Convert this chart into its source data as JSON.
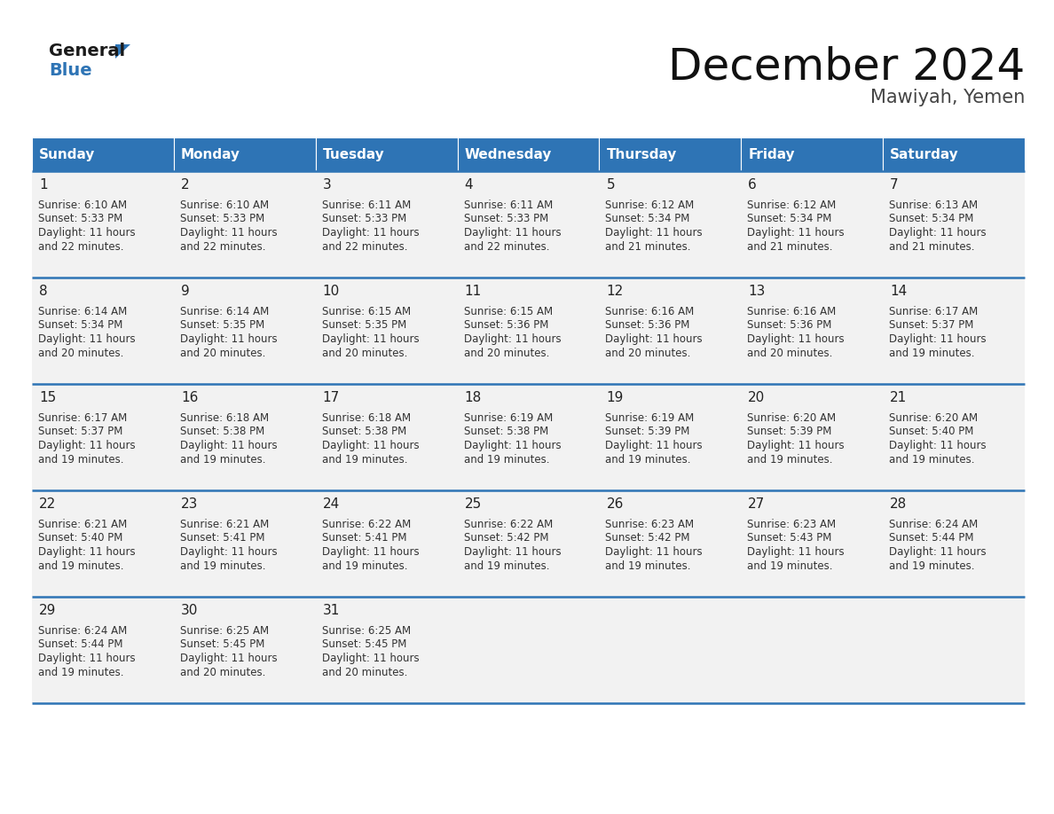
{
  "title": "December 2024",
  "subtitle": "Mawiyah, Yemen",
  "header_bg_color": "#2E74B5",
  "header_text_color": "#FFFFFF",
  "cell_bg_color": "#F2F2F2",
  "border_color": "#2E74B5",
  "text_color": "#333333",
  "days_of_week": [
    "Sunday",
    "Monday",
    "Tuesday",
    "Wednesday",
    "Thursday",
    "Friday",
    "Saturday"
  ],
  "weeks": [
    [
      {
        "day": 1,
        "sunrise": "6:10 AM",
        "sunset": "5:33 PM",
        "daylight_min": "22"
      },
      {
        "day": 2,
        "sunrise": "6:10 AM",
        "sunset": "5:33 PM",
        "daylight_min": "22"
      },
      {
        "day": 3,
        "sunrise": "6:11 AM",
        "sunset": "5:33 PM",
        "daylight_min": "22"
      },
      {
        "day": 4,
        "sunrise": "6:11 AM",
        "sunset": "5:33 PM",
        "daylight_min": "22"
      },
      {
        "day": 5,
        "sunrise": "6:12 AM",
        "sunset": "5:34 PM",
        "daylight_min": "21"
      },
      {
        "day": 6,
        "sunrise": "6:12 AM",
        "sunset": "5:34 PM",
        "daylight_min": "21"
      },
      {
        "day": 7,
        "sunrise": "6:13 AM",
        "sunset": "5:34 PM",
        "daylight_min": "21"
      }
    ],
    [
      {
        "day": 8,
        "sunrise": "6:14 AM",
        "sunset": "5:34 PM",
        "daylight_min": "20"
      },
      {
        "day": 9,
        "sunrise": "6:14 AM",
        "sunset": "5:35 PM",
        "daylight_min": "20"
      },
      {
        "day": 10,
        "sunrise": "6:15 AM",
        "sunset": "5:35 PM",
        "daylight_min": "20"
      },
      {
        "day": 11,
        "sunrise": "6:15 AM",
        "sunset": "5:36 PM",
        "daylight_min": "20"
      },
      {
        "day": 12,
        "sunrise": "6:16 AM",
        "sunset": "5:36 PM",
        "daylight_min": "20"
      },
      {
        "day": 13,
        "sunrise": "6:16 AM",
        "sunset": "5:36 PM",
        "daylight_min": "20"
      },
      {
        "day": 14,
        "sunrise": "6:17 AM",
        "sunset": "5:37 PM",
        "daylight_min": "19"
      }
    ],
    [
      {
        "day": 15,
        "sunrise": "6:17 AM",
        "sunset": "5:37 PM",
        "daylight_min": "19"
      },
      {
        "day": 16,
        "sunrise": "6:18 AM",
        "sunset": "5:38 PM",
        "daylight_min": "19"
      },
      {
        "day": 17,
        "sunrise": "6:18 AM",
        "sunset": "5:38 PM",
        "daylight_min": "19"
      },
      {
        "day": 18,
        "sunrise": "6:19 AM",
        "sunset": "5:38 PM",
        "daylight_min": "19"
      },
      {
        "day": 19,
        "sunrise": "6:19 AM",
        "sunset": "5:39 PM",
        "daylight_min": "19"
      },
      {
        "day": 20,
        "sunrise": "6:20 AM",
        "sunset": "5:39 PM",
        "daylight_min": "19"
      },
      {
        "day": 21,
        "sunrise": "6:20 AM",
        "sunset": "5:40 PM",
        "daylight_min": "19"
      }
    ],
    [
      {
        "day": 22,
        "sunrise": "6:21 AM",
        "sunset": "5:40 PM",
        "daylight_min": "19"
      },
      {
        "day": 23,
        "sunrise": "6:21 AM",
        "sunset": "5:41 PM",
        "daylight_min": "19"
      },
      {
        "day": 24,
        "sunrise": "6:22 AM",
        "sunset": "5:41 PM",
        "daylight_min": "19"
      },
      {
        "day": 25,
        "sunrise": "6:22 AM",
        "sunset": "5:42 PM",
        "daylight_min": "19"
      },
      {
        "day": 26,
        "sunrise": "6:23 AM",
        "sunset": "5:42 PM",
        "daylight_min": "19"
      },
      {
        "day": 27,
        "sunrise": "6:23 AM",
        "sunset": "5:43 PM",
        "daylight_min": "19"
      },
      {
        "day": 28,
        "sunrise": "6:24 AM",
        "sunset": "5:44 PM",
        "daylight_min": "19"
      }
    ],
    [
      {
        "day": 29,
        "sunrise": "6:24 AM",
        "sunset": "5:44 PM",
        "daylight_min": "19"
      },
      {
        "day": 30,
        "sunrise": "6:25 AM",
        "sunset": "5:45 PM",
        "daylight_min": "20"
      },
      {
        "day": 31,
        "sunrise": "6:25 AM",
        "sunset": "5:45 PM",
        "daylight_min": "20"
      },
      null,
      null,
      null,
      null
    ]
  ],
  "logo_general_color": "#1a1a1a",
  "logo_blue_color": "#2E74B5",
  "logo_triangle_color": "#2E74B5",
  "title_fontsize": 36,
  "subtitle_fontsize": 15,
  "header_fontsize": 11,
  "day_number_fontsize": 11,
  "cell_text_fontsize": 8.5
}
